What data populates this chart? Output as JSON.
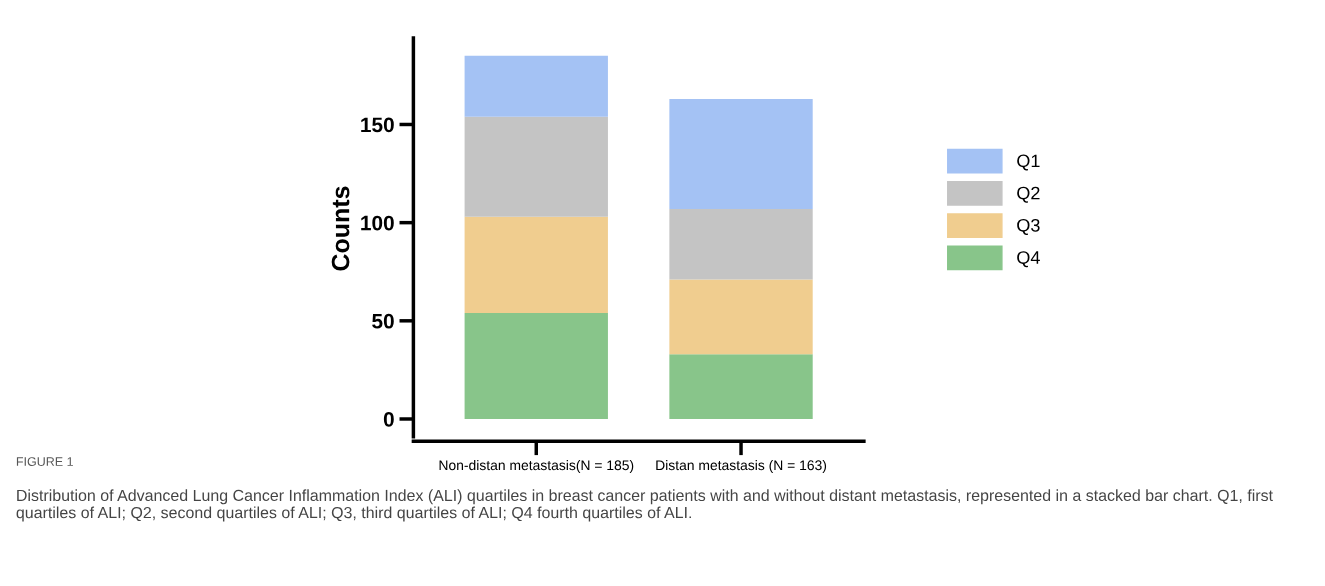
{
  "chart_data": {
    "type": "bar",
    "stacked": true,
    "ylabel": "Counts",
    "categories": [
      "Non-distan metastasis(N = 185)",
      "Distan metastasis (N = 163)"
    ],
    "series": [
      {
        "name": "Q4",
        "color": "#88c58a",
        "values": [
          54,
          33
        ]
      },
      {
        "name": "Q3",
        "color": "#f0cd8f",
        "values": [
          49,
          38
        ]
      },
      {
        "name": "Q2",
        "color": "#c4c4c4",
        "values": [
          51,
          36
        ]
      },
      {
        "name": "Q1",
        "color": "#a4c2f4",
        "values": [
          31,
          56
        ]
      }
    ],
    "ylim": [
      0,
      194
    ],
    "yticks": [
      0,
      50,
      100,
      150
    ],
    "grid": false,
    "legend": "right",
    "annotations": [
      "FIGURE 1",
      "Distribution of Advanced Lung Cancer Inflammation Index (ALI) quartiles in breast cancer patients with and without distant metastasis, represented in a stacked bar chart. Q1, first quartiles of ALI; Q2, second quartiles of ALI; Q3, third quartiles of ALI; Q4 fourth quartiles of ALI."
    ]
  }
}
